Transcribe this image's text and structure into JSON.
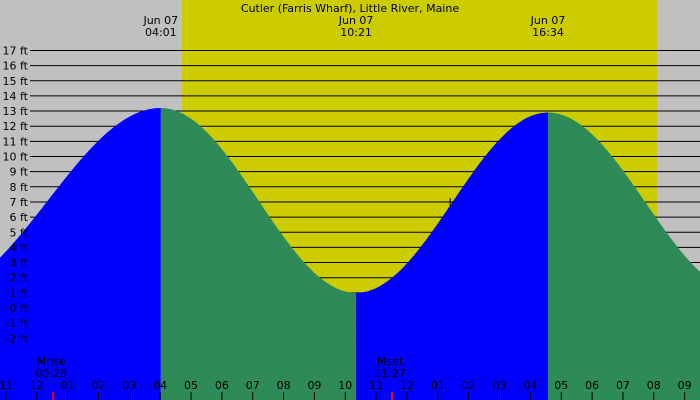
{
  "chart_data": {
    "type": "area",
    "title": "Cutler (Farris Wharf), Little River, Maine",
    "xlabel": "",
    "ylabel": "",
    "y_unit": "ft",
    "ylim": [
      -3,
      18
    ],
    "y_ticks": [
      -2,
      -1,
      0,
      1,
      2,
      3,
      4,
      5,
      6,
      7,
      8,
      9,
      10,
      11,
      12,
      13,
      14,
      15,
      16,
      17
    ],
    "x_range_hours": [
      -1,
      22.2
    ],
    "x_ticks": [
      {
        "h": -1,
        "label": "11"
      },
      {
        "h": 0,
        "label": "12"
      },
      {
        "h": 1,
        "label": "01"
      },
      {
        "h": 2,
        "label": "02"
      },
      {
        "h": 3,
        "label": "03"
      },
      {
        "h": 4,
        "label": "04"
      },
      {
        "h": 5,
        "label": "05"
      },
      {
        "h": 6,
        "label": "06"
      },
      {
        "h": 7,
        "label": "07"
      },
      {
        "h": 8,
        "label": "08"
      },
      {
        "h": 9,
        "label": "09"
      },
      {
        "h": 10,
        "label": "10"
      },
      {
        "h": 11,
        "label": "11"
      },
      {
        "h": 12,
        "label": "12"
      },
      {
        "h": 13,
        "label": "01"
      },
      {
        "h": 14,
        "label": "02"
      },
      {
        "h": 15,
        "label": "03"
      },
      {
        "h": 16,
        "label": "04"
      },
      {
        "h": 17,
        "label": "05"
      },
      {
        "h": 18,
        "label": "06"
      },
      {
        "h": 19,
        "label": "07"
      },
      {
        "h": 20,
        "label": "08"
      },
      {
        "h": 21,
        "label": "09"
      }
    ],
    "daylight": {
      "start": 4.7,
      "end": 20.1
    },
    "extremes": [
      {
        "h": -3.3,
        "height": 1.0,
        "type": "low"
      },
      {
        "h": 4.02,
        "height": 13.2,
        "type": "high",
        "date": "Jun 07",
        "time": "04:01"
      },
      {
        "h": 10.35,
        "height": 1.0,
        "type": "low",
        "date": "Jun 07",
        "time": "10:21"
      },
      {
        "h": 16.57,
        "height": 12.9,
        "type": "high",
        "date": "Jun 07",
        "time": "16:34"
      },
      {
        "h": 22.9,
        "height": 1.0,
        "type": "low"
      }
    ],
    "now_marker": {
      "h": 13.4,
      "height": 7.0
    },
    "moon_events": [
      {
        "label": "Mrise",
        "time": "00:28",
        "h": 0.47
      },
      {
        "label": "Mset",
        "time": "11:27",
        "h": 11.45
      }
    ],
    "colors": {
      "background": "#c0c0c0",
      "daylight": "#cccc00",
      "rising": "#0000ff",
      "falling": "#2e8b57",
      "grid": "#000000",
      "moon_marker": "#ff0000"
    }
  }
}
